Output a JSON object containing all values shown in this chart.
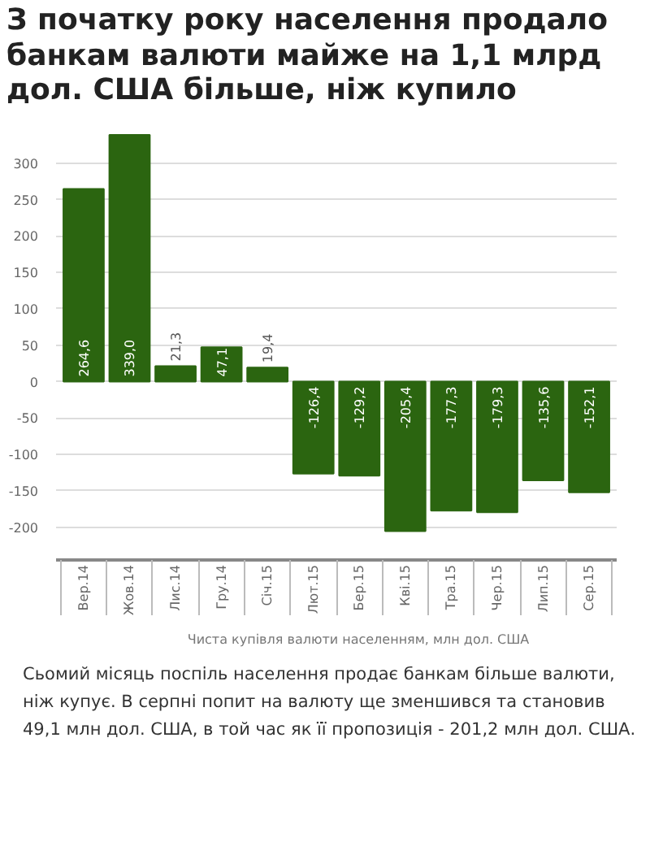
{
  "chart_data": {
    "type": "bar",
    "title": "З початку року населення продало банкам валюти майже на 1,1 млрд дол. США більше, ніж купило",
    "categories": [
      "Вер.14",
      "Жов.14",
      "Лис.14",
      "Гру.14",
      "Січ.15",
      "Лют.15",
      "Бер.15",
      "Кві.15",
      "Тра.15",
      "Чер.15",
      "Лип.15",
      "Сер.15"
    ],
    "series": [
      {
        "name": "Чиста купівля валюти населенням, млн дол. США",
        "color": "#2b6510",
        "values": [
          264.6,
          339.0,
          21.3,
          47.1,
          19.4,
          -126.4,
          -129.2,
          -205.4,
          -177.3,
          -179.3,
          -135.6,
          -152.1
        ],
        "value_labels": [
          "264,6",
          "339,0",
          "21,3",
          "47,1",
          "19,4",
          "-126,4",
          "-129,2",
          "-205,4",
          "-177,3",
          "-179,3",
          "-135,6",
          "-152,1"
        ]
      }
    ],
    "ylim": [
      -245,
      340
    ],
    "yticks": [
      -200,
      -150,
      -100,
      -50,
      0,
      50,
      100,
      150,
      200,
      250,
      300
    ],
    "grid": "y",
    "legend": "bottom",
    "annotations": [
      "Сьомий місяць поспіль населення продає банкам більше валюти, ніж купує. В серпні попит на валюту ще зменшився та становив 49,1 млн дол. США, в той час як її пропозиція - 201,2 млн дол. США."
    ]
  }
}
